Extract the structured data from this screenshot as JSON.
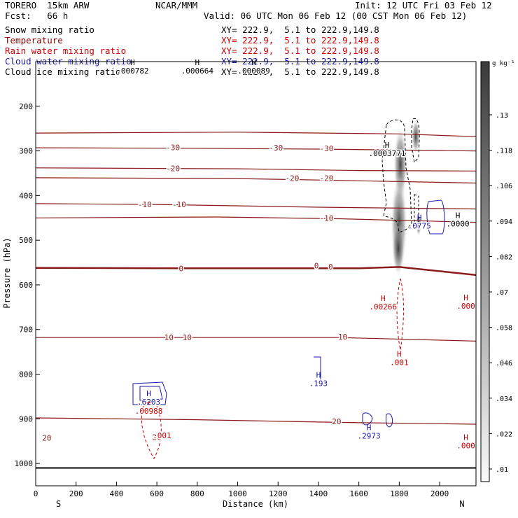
{
  "header": {
    "model": "TORERO  15km ARW",
    "center": "NCAR/MMM",
    "init": "Init: 12 UTC Fri 03 Feb 12",
    "fcst": "Fcst:   66 h",
    "valid": "Valid: 06 UTC Mon 06 Feb 12 (00 CST Mon 06 Feb 12)"
  },
  "fields": [
    {
      "name": "Snow mixing ratio",
      "color": "#000000",
      "xy": "XY= 222.9,  5.1 to 222.9,149.8"
    },
    {
      "name": "Temperature",
      "color": "#8b0000",
      "xy": "XY= 222.9,  5.1 to 222.9,149.8"
    },
    {
      "name": "Rain water mixing ratio",
      "color": "#cc0000",
      "xy": "XY= 222.9,  5.1 to 222.9,149.8"
    },
    {
      "name": "Cloud water mixing ratio",
      "color": "#1a1aaa",
      "xy": "XY= 222.9,  5.1 to 222.9,149.8"
    },
    {
      "name": "Cloud ice mixing ratio",
      "color": "#000000",
      "xy": "XY= 222.9,  5.1 to 222.9,149.8"
    }
  ],
  "chart_data": {
    "type": "contour",
    "xlabel": "Distance (km)",
    "ylabel": "Pressure (hPa)",
    "xlim": [
      0,
      2180
    ],
    "ylim": [
      1050,
      100
    ],
    "x_ticks": [
      "0",
      "200",
      "400",
      "600",
      "800",
      "1000",
      "1200",
      "1400",
      "1600",
      "1800",
      "2000"
    ],
    "y_ticks": [
      "200",
      "300",
      "400",
      "500",
      "600",
      "700",
      "800",
      "900",
      "1000"
    ],
    "x_end_labels": {
      "left": "S",
      "right": "N"
    },
    "colorbar": {
      "unit": "g kg⁻¹",
      "ticks": [
        ".13",
        ".118",
        ".106",
        ".094",
        ".082",
        ".07",
        ".058",
        ".046",
        ".034",
        ".022",
        ".01"
      ]
    },
    "temperature_isotherms": [
      {
        "label": "-30",
        "x": [
          0,
          1000,
          1800,
          2180
        ],
        "p": [
          260,
          258,
          262,
          268
        ]
      },
      {
        "label": "-30 (second)",
        "x": [
          0,
          700,
          1400,
          2180
        ],
        "p": [
          293,
          294,
          296,
          300
        ]
      },
      {
        "label": "-20",
        "x": [
          0,
          1000,
          1600,
          2180
        ],
        "p": [
          338,
          340,
          344,
          345
        ]
      },
      {
        "label": "-20 (second)",
        "x": [
          0,
          1000,
          1500,
          2180
        ],
        "p": [
          360,
          362,
          366,
          372
        ]
      },
      {
        "label": "-10",
        "x": [
          0,
          600,
          1400,
          2180
        ],
        "p": [
          418,
          420,
          426,
          430
        ]
      },
      {
        "label": "-10 (second)",
        "x": [
          0,
          900,
          1500,
          2180
        ],
        "p": [
          450,
          448,
          452,
          460
        ]
      },
      {
        "label": "0",
        "x": [
          0,
          800,
          1600,
          1800,
          2180
        ],
        "p": [
          562,
          563,
          563,
          560,
          578
        ]
      },
      {
        "label": "10",
        "x": [
          0,
          800,
          1500,
          2180
        ],
        "p": [
          718,
          718,
          718,
          726
        ]
      },
      {
        "label": "20",
        "x": [
          0,
          800,
          1500,
          2180
        ],
        "p": [
          898,
          902,
          908,
          912
        ]
      }
    ],
    "temperature_labels": [
      {
        "text": "-30",
        "x": 680,
        "p": 292
      },
      {
        "text": "-30",
        "x": 1190,
        "p": 293
      },
      {
        "text": "-30",
        "x": 1440,
        "p": 294
      },
      {
        "text": "-20",
        "x": 680,
        "p": 339
      },
      {
        "text": "-20",
        "x": 1270,
        "p": 361
      },
      {
        "text": "-20",
        "x": 1440,
        "p": 361
      },
      {
        "text": "-10",
        "x": 540,
        "p": 420
      },
      {
        "text": "-10",
        "x": 710,
        "p": 420
      },
      {
        "text": "-10",
        "x": 1440,
        "p": 450
      },
      {
        "text": "0",
        "x": 720,
        "p": 563
      },
      {
        "text": "0",
        "x": 1390,
        "p": 557
      },
      {
        "text": "0",
        "x": 1460,
        "p": 559
      },
      {
        "text": "10",
        "x": 660,
        "p": 718
      },
      {
        "text": "10",
        "x": 750,
        "p": 718
      },
      {
        "text": "10",
        "x": 1520,
        "p": 716
      },
      {
        "text": "20",
        "x": 1490,
        "p": 906
      },
      {
        "text": "20",
        "x": 600,
        "p": 941
      },
      {
        "text": "20",
        "x": 55,
        "p": 943
      }
    ],
    "maxima_labels": [
      {
        "letter": "H",
        "value": ".0003771",
        "x": 1740,
        "p": 305,
        "color": "#000000"
      },
      {
        "letter": "H",
        "value": ".000664",
        "x": 800,
        "p": 120,
        "color": "#000000"
      },
      {
        "letter": "H",
        "value": ".0775",
        "x": 1900,
        "p": 468,
        "color": "#1a1aaa"
      },
      {
        "letter": "H",
        "value": ".0000",
        "x": 2090,
        "p": 463,
        "color": "#000000"
      },
      {
        "letter": "H",
        "value": ".00266",
        "x": 1720,
        "p": 649,
        "color": "#cc0000"
      },
      {
        "letter": "H",
        "value": ".000",
        "x": 2130,
        "p": 647,
        "color": "#cc0000"
      },
      {
        "letter": "H",
        "value": ".001",
        "x": 1800,
        "p": 773,
        "color": "#cc0000"
      },
      {
        "letter": "H",
        "value": ".193",
        "x": 1400,
        "p": 820,
        "color": "#1a1aaa"
      },
      {
        "letter": "H",
        "value": ".6203",
        "x": 560,
        "p": 862,
        "color": "#1a1aaa"
      },
      {
        "letter": "+",
        "value": ".00988",
        "x": 560,
        "p": 882,
        "color": "#cc0000"
      },
      {
        "letter": "H",
        "value": ".2973",
        "x": 1650,
        "p": 938,
        "color": "#1a1aaa"
      },
      {
        "letter": "",
        "value": ".001",
        "x": 625,
        "p": 937,
        "color": "#cc0000"
      },
      {
        "letter": "H",
        "value": ".000",
        "x": 2130,
        "p": 960,
        "color": "#cc0000"
      },
      {
        "letter": "H",
        "value": ".000782",
        "x": 480,
        "p": 120,
        "color": "#000000"
      },
      {
        "letter": "H",
        "value": ".000089",
        "x": 1080,
        "p": 120,
        "color": "#000000"
      }
    ]
  }
}
